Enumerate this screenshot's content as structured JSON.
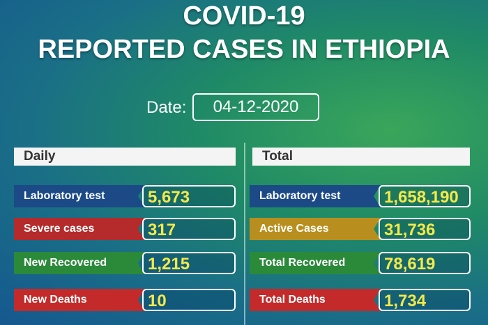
{
  "header": {
    "line1": "COVID-19",
    "line2": "REPORTED CASES IN ETHIOPIA"
  },
  "date": {
    "label": "Date:",
    "value": "04-12-2020"
  },
  "daily": {
    "title": "Daily",
    "rows": [
      {
        "label": "Laboratory test",
        "value": "5,673"
      },
      {
        "label": "Severe cases",
        "value": "317"
      },
      {
        "label": "New Recovered",
        "value": "1,215"
      },
      {
        "label": "New Deaths",
        "value": "10"
      }
    ]
  },
  "total": {
    "title": "Total",
    "rows": [
      {
        "label": "Laboratory test",
        "value": "1,658,190"
      },
      {
        "label": "Active Cases",
        "value": "31,736"
      },
      {
        "label": "Total Recovered",
        "value": "78,619"
      },
      {
        "label": "Total Deaths",
        "value": "1,734"
      }
    ]
  }
}
